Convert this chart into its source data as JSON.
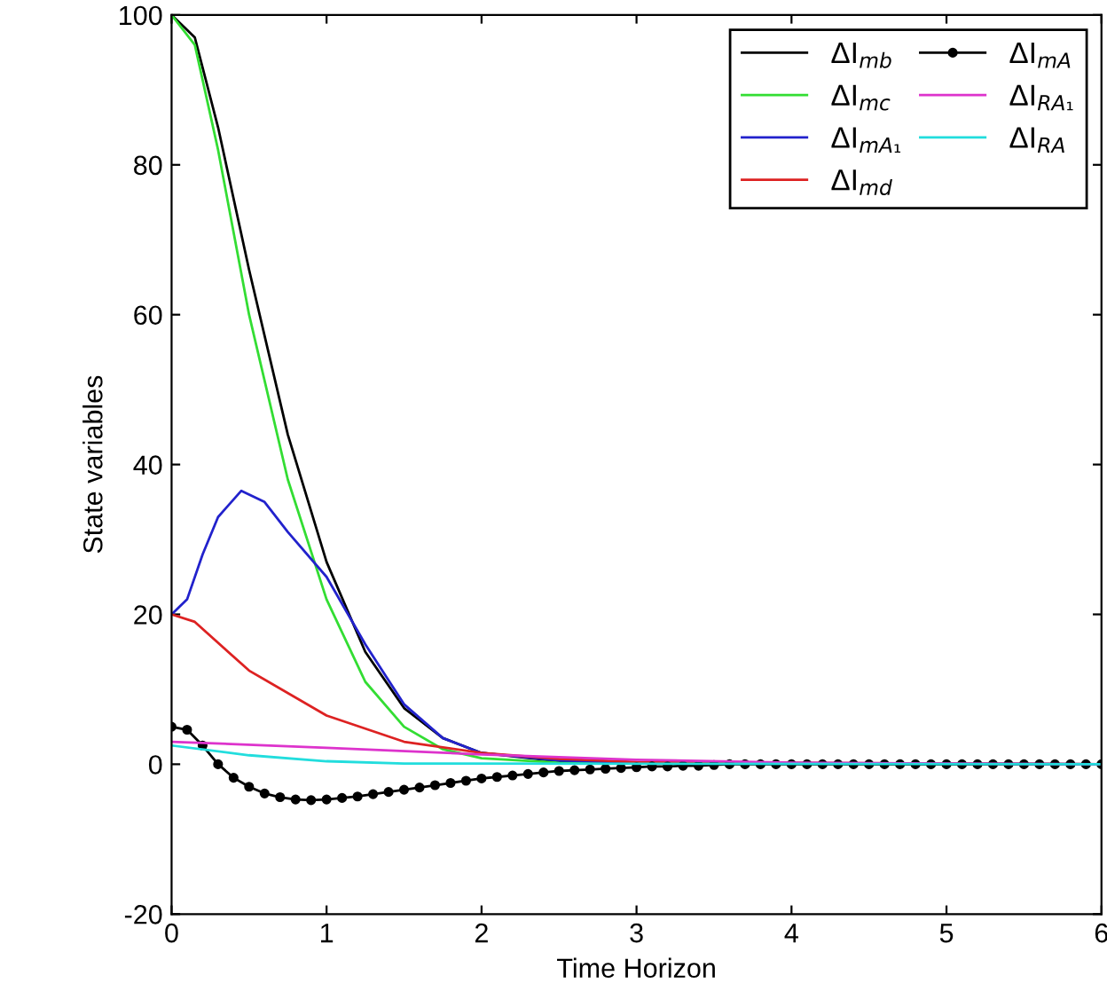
{
  "chart_data": {
    "type": "line",
    "xlabel": "Time Horizon",
    "ylabel": "State variables",
    "xlim": [
      0,
      6
    ],
    "xticks": [
      0,
      1,
      2,
      3,
      4,
      5,
      6
    ],
    "ylim": [
      -20,
      100
    ],
    "yticks": [
      -20,
      0,
      20,
      40,
      60,
      80,
      100
    ],
    "grid": false,
    "legend": "top right",
    "line_style": "solid",
    "series": [
      {
        "name": "ΔI$_{mb}$",
        "color": "#000000",
        "marker": "none",
        "x": [
          0,
          0.1,
          0.15,
          0.3,
          0.5,
          0.75,
          1.0,
          1.25,
          1.5,
          1.75,
          2,
          2.5,
          3,
          6
        ],
        "values": [
          100,
          98,
          97,
          85,
          66,
          44,
          27,
          15,
          7.5,
          3.5,
          1.5,
          0.4,
          0.1,
          0
        ]
      },
      {
        "name": "ΔI$_{mc}$",
        "color": "#33dd33",
        "marker": "none",
        "x": [
          0,
          0.15,
          0.3,
          0.5,
          0.75,
          1.0,
          1.25,
          1.5,
          1.75,
          2,
          2.5,
          6
        ],
        "values": [
          100,
          96,
          82,
          60,
          38,
          22,
          11,
          5,
          2,
          0.8,
          0.2,
          0
        ]
      },
      {
        "name": "ΔI$_{mA₁}$",
        "color": "#2222cc",
        "marker": "none",
        "x": [
          0,
          0.1,
          0.2,
          0.3,
          0.45,
          0.6,
          0.75,
          1,
          1.25,
          1.5,
          1.75,
          2,
          2.5,
          3,
          6
        ],
        "values": [
          20,
          22,
          28,
          33,
          36.5,
          35,
          31,
          25,
          16,
          8,
          3.5,
          1.5,
          0.5,
          0.2,
          0
        ]
      },
      {
        "name": "ΔI$_{md}$",
        "color": "#dd2222",
        "marker": "none",
        "x": [
          0,
          0.15,
          0.5,
          1,
          1.5,
          2,
          2.5,
          3,
          6
        ],
        "values": [
          20,
          19,
          12.5,
          6.5,
          3,
          1.5,
          0.7,
          0.3,
          0
        ]
      },
      {
        "name": "ΔI$_{mA}$",
        "color": "#000000",
        "marker": "circle",
        "x": [
          0,
          0.1,
          0.2,
          0.3,
          0.4,
          0.5,
          0.6,
          0.7,
          0.8,
          0.9,
          1.0,
          1.1,
          1.2,
          1.3,
          1.4,
          1.5,
          1.6,
          1.7,
          1.8,
          1.9,
          2.0,
          2.1,
          2.2,
          2.3,
          2.4,
          2.5,
          2.6,
          2.7,
          2.8,
          2.9,
          3.0,
          3.1,
          3.2,
          3.3,
          3.4,
          3.5,
          3.6,
          3.7,
          3.8,
          3.9,
          4.0,
          4.1,
          4.2,
          4.3,
          4.4,
          4.5,
          4.6,
          4.7,
          4.8,
          4.9,
          5.0,
          5.1,
          5.2,
          5.3,
          5.4,
          5.5,
          5.6,
          5.7,
          5.8,
          5.9,
          6.0
        ],
        "values": [
          5,
          4.6,
          2.5,
          0,
          -1.8,
          -3,
          -3.9,
          -4.4,
          -4.7,
          -4.8,
          -4.7,
          -4.5,
          -4.3,
          -4.0,
          -3.7,
          -3.4,
          -3.1,
          -2.8,
          -2.5,
          -2.2,
          -1.9,
          -1.7,
          -1.5,
          -1.3,
          -1.1,
          -0.9,
          -0.8,
          -0.7,
          -0.6,
          -0.5,
          -0.4,
          -0.3,
          -0.3,
          -0.2,
          -0.2,
          -0.1,
          0,
          0,
          0,
          0,
          0,
          0,
          0,
          0,
          0,
          0,
          0,
          0,
          0,
          0,
          0,
          0,
          0,
          0,
          0,
          0,
          0,
          0,
          0,
          0,
          0
        ]
      },
      {
        "name": "ΔI$_{RA₁}$",
        "color": "#dd33cc",
        "marker": "none",
        "x": [
          0,
          1,
          2,
          3,
          4,
          6
        ],
        "values": [
          3,
          2.2,
          1.3,
          0.6,
          0.2,
          0
        ]
      },
      {
        "name": "ΔI$_{RA}$",
        "color": "#22dddd",
        "marker": "none",
        "x": [
          0,
          0.5,
          1,
          1.5,
          6
        ],
        "values": [
          2.5,
          1.2,
          0.4,
          0.1,
          0
        ]
      }
    ]
  }
}
